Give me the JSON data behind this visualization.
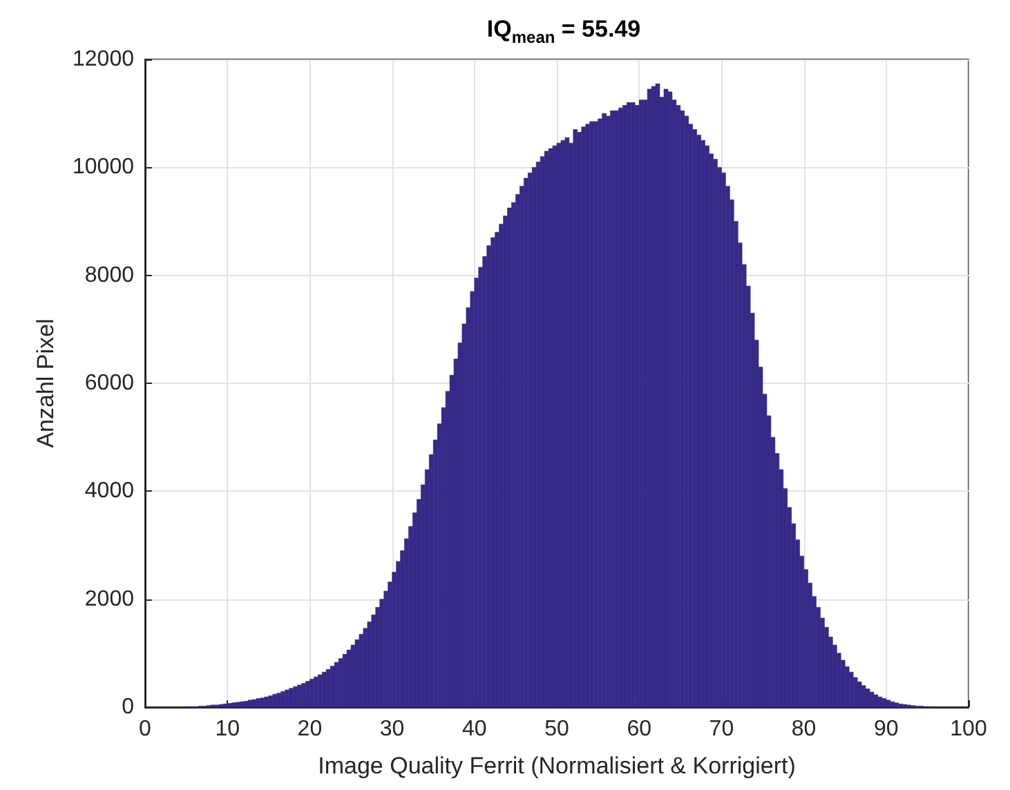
{
  "chart_data": {
    "type": "histogram",
    "title": "IQ$_{mean}$ = 55.49",
    "xlabel": "Image Quality Ferrit (Normalisiert & Korrigiert)",
    "ylabel": "Anzahl Pixel",
    "bins": [
      5,
      5.5,
      6,
      6.5,
      7,
      7.5,
      8,
      8.5,
      9,
      9.5,
      10,
      10.5,
      11,
      11.5,
      12,
      12.5,
      13,
      13.5,
      14,
      14.5,
      15,
      15.5,
      16,
      16.5,
      17,
      17.5,
      18,
      18.5,
      19,
      19.5,
      20,
      20.5,
      21,
      21.5,
      22,
      22.5,
      23,
      23.5,
      24,
      24.5,
      25,
      25.5,
      26,
      26.5,
      27,
      27.5,
      28,
      28.5,
      29,
      29.5,
      30,
      30.5,
      31,
      31.5,
      32,
      32.5,
      33,
      33.5,
      34,
      34.5,
      35,
      35.5,
      36,
      36.5,
      37,
      37.5,
      38,
      38.5,
      39,
      39.5,
      40,
      40.5,
      41,
      41.5,
      42,
      42.5,
      43,
      43.5,
      44,
      44.5,
      45,
      45.5,
      46,
      46.5,
      47,
      47.5,
      48,
      48.5,
      49,
      49.5,
      50,
      50.5,
      51,
      51.5,
      52,
      52.5,
      53,
      53.5,
      54,
      54.5,
      55,
      55.5,
      56,
      56.5,
      57,
      57.5,
      58,
      58.5,
      59,
      59.5,
      60,
      60.5,
      61,
      61.5,
      62,
      62.5,
      63,
      63.5,
      64,
      64.5,
      65,
      65.5,
      66,
      66.5,
      67,
      67.5,
      68,
      68.5,
      69,
      69.5,
      70,
      70.5,
      71,
      71.5,
      72,
      72.5,
      73,
      73.5,
      74,
      74.5,
      75,
      75.5,
      76,
      76.5,
      77,
      77.5,
      78,
      78.5,
      79,
      79.5,
      80,
      80.5,
      81,
      81.5,
      82,
      82.5,
      83,
      83.5,
      84,
      84.5,
      85,
      85.5,
      86,
      86.5,
      87,
      87.5,
      88,
      88.5,
      89,
      89.5,
      90,
      90.5,
      91,
      91.5,
      92,
      92.5,
      93,
      93.5,
      94,
      94.5,
      95,
      95.5,
      96
    ],
    "values": [
      10,
      10,
      10,
      20,
      20,
      30,
      40,
      40,
      50,
      60,
      70,
      80,
      90,
      100,
      110,
      130,
      140,
      160,
      170,
      190,
      210,
      240,
      260,
      290,
      320,
      350,
      380,
      410,
      440,
      480,
      520,
      560,
      600,
      650,
      700,
      760,
      830,
      900,
      980,
      1060,
      1150,
      1250,
      1350,
      1460,
      1580,
      1710,
      1850,
      2000,
      2150,
      2320,
      2500,
      2700,
      2900,
      3120,
      3350,
      3600,
      3850,
      4120,
      4400,
      4680,
      4950,
      5250,
      5550,
      5850,
      6150,
      6450,
      6750,
      7100,
      7400,
      7700,
      7950,
      8150,
      8350,
      8550,
      8700,
      8800,
      8950,
      9100,
      9250,
      9350,
      9500,
      9650,
      9800,
      9900,
      10000,
      10100,
      10200,
      10300,
      10350,
      10400,
      10450,
      10500,
      10550,
      10450,
      10700,
      10650,
      10750,
      10800,
      10850,
      10850,
      10900,
      11000,
      10950,
      11050,
      11050,
      11100,
      11150,
      11200,
      11200,
      11150,
      11250,
      11250,
      11450,
      11500,
      11550,
      11300,
      11450,
      11400,
      11250,
      11150,
      11050,
      10950,
      10800,
      10700,
      10600,
      10500,
      10400,
      10250,
      10150,
      10000,
      9900,
      9650,
      9400,
      9000,
      8600,
      8200,
      7800,
      7300,
      6800,
      6300,
      5800,
      5400,
      5000,
      4700,
      4400,
      4050,
      3700,
      3400,
      3100,
      2800,
      2550,
      2300,
      2050,
      1850,
      1650,
      1480,
      1300,
      1150,
      1000,
      870,
      750,
      650,
      550,
      470,
      400,
      340,
      280,
      230,
      190,
      160,
      130,
      100,
      80,
      60,
      50,
      40,
      30,
      20,
      20,
      10,
      10,
      10
    ],
    "color": "#352a87",
    "xlim": [
      0,
      100
    ],
    "xticks": [
      0,
      10,
      20,
      30,
      40,
      50,
      60,
      70,
      80,
      90,
      100
    ],
    "ylim": [
      0,
      12000
    ],
    "yticks": [
      0,
      2000,
      4000,
      6000,
      8000,
      10000,
      12000
    ],
    "grid": true
  }
}
